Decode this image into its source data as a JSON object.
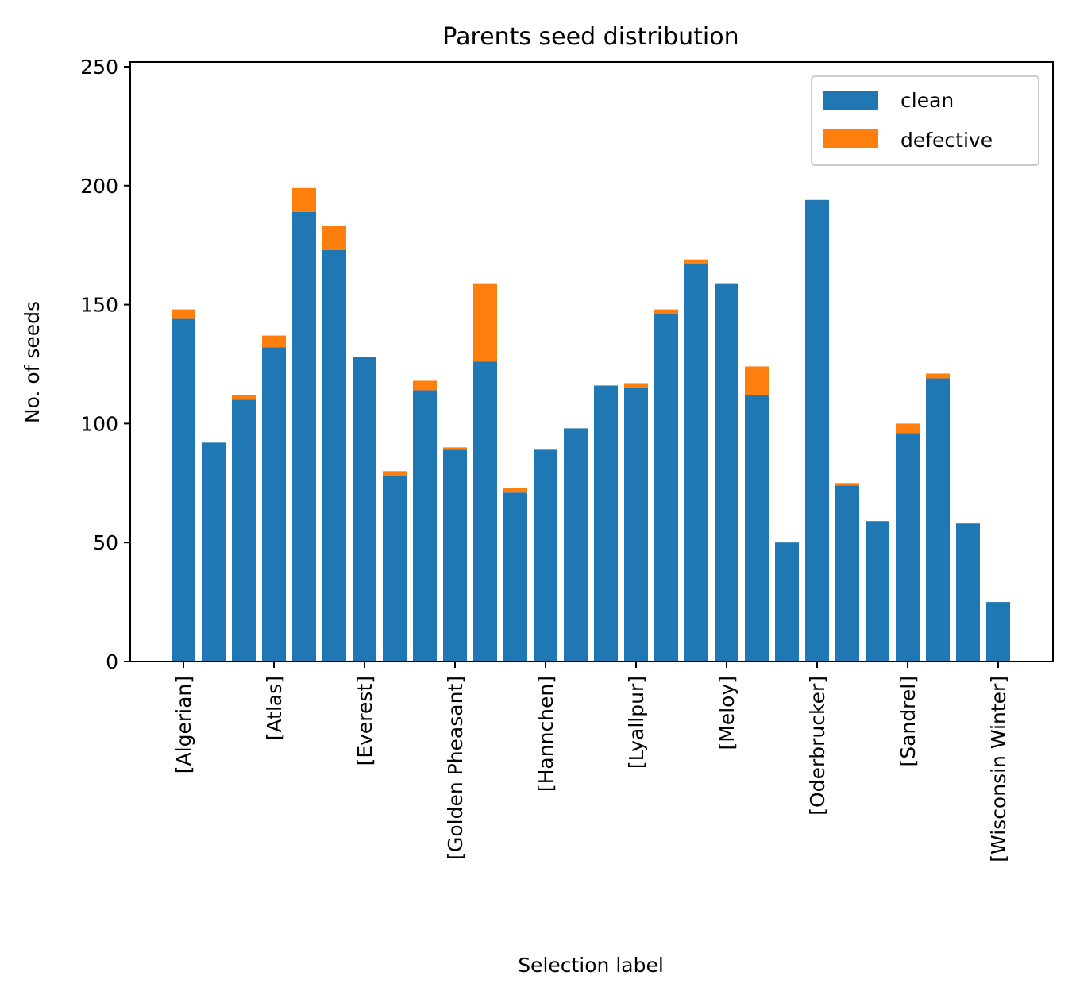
{
  "chart_data": {
    "type": "bar",
    "stacked": true,
    "title": "Parents seed distribution",
    "xlabel": "Selection label",
    "ylabel": "No. of seeds",
    "ylim": [
      0,
      252
    ],
    "yticks": [
      0,
      50,
      100,
      150,
      200,
      250
    ],
    "grid": false,
    "legend_position": "top-right",
    "tick_labels": [
      "[Algerian]",
      "[Atlas]",
      "[Everest]",
      "[Golden Pheasant]",
      "[Hannchen]",
      "[Lyallpur]",
      "[Meloy]",
      "[Oderbrucker]",
      "[Sandrel]",
      "[Wisconsin Winter]"
    ],
    "tick_positions": [
      0,
      3,
      6,
      9,
      12,
      15,
      18,
      21,
      24,
      27
    ],
    "bar_count": 28,
    "series": [
      {
        "name": "clean",
        "color": "#1f77b4",
        "values": [
          144,
          92,
          110,
          132,
          189,
          173,
          128,
          78,
          114,
          89,
          126,
          71,
          89,
          98,
          116,
          115,
          146,
          167,
          159,
          112,
          50,
          194,
          74,
          59,
          96,
          119,
          58,
          25
        ]
      },
      {
        "name": "defective",
        "color": "#ff7f0e",
        "values": [
          4,
          0,
          2,
          5,
          10,
          10,
          0,
          2,
          4,
          1,
          33,
          2,
          0,
          0,
          0,
          2,
          2,
          2,
          0,
          12,
          0,
          0,
          1,
          0,
          4,
          2,
          0,
          0
        ]
      }
    ]
  }
}
